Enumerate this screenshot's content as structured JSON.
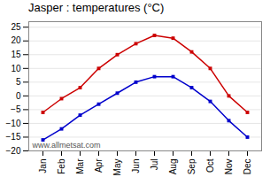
{
  "chart_data": {
    "type": "line",
    "title": "Jasper : temperatures (°C)",
    "categories": [
      "Jan",
      "Feb",
      "Mar",
      "Apr",
      "May",
      "Jun",
      "Jul",
      "Aug",
      "Sep",
      "Oct",
      "Nov",
      "Dec"
    ],
    "series": [
      {
        "color": "#cc0000",
        "values": [
          -6,
          -1,
          3,
          10,
          15,
          19,
          22,
          21,
          16,
          10,
          0,
          -6
        ]
      },
      {
        "color": "#0000cc",
        "values": [
          -16,
          -12,
          -7,
          -3,
          1,
          5,
          7,
          7,
          3,
          -2,
          -9,
          -15
        ]
      }
    ],
    "ylim": [
      -20,
      27
    ],
    "yticks": [
      -20,
      -15,
      -10,
      -5,
      0,
      5,
      10,
      15,
      20,
      25
    ],
    "grid": true,
    "marker": "square",
    "annotations": [
      "www.allmetsat.com"
    ]
  }
}
